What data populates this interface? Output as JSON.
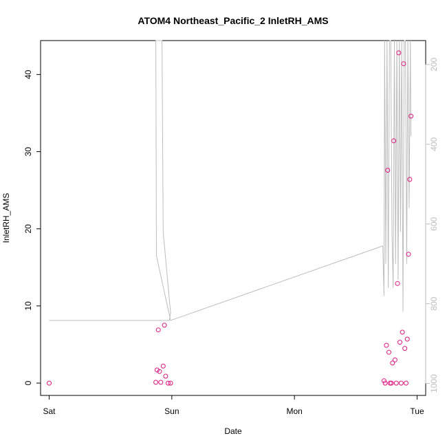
{
  "chart_data": {
    "type": "scatter",
    "title": "ATOM4 Northeast_Pacific_2 InletRH_AMS",
    "xlabel": "Date",
    "ylabel": "InletRH_AMS",
    "x_ticks": [
      "Sat",
      "Sun",
      "Mon",
      "Tue"
    ],
    "y_ticks": [
      0,
      10,
      20,
      30,
      40
    ],
    "ylim": [
      -1.6,
      44.4
    ],
    "xlim_days": [
      -0.07,
      3.07
    ],
    "right_axis": {
      "ticks": [
        200,
        400,
        600,
        800,
        1000
      ],
      "range_top_to_bottom": [
        140,
        1030
      ],
      "color": "#bdbdbd"
    },
    "series": [
      {
        "style": "points",
        "color": "#e0157f",
        "x_days": [
          0.0,
          0.87,
          0.88,
          0.9,
          0.91,
          0.93,
          0.94,
          0.95,
          0.97,
          0.99,
          0.89,
          2.73,
          2.74,
          2.75,
          2.76,
          2.77,
          2.78,
          2.79,
          2.8,
          2.81,
          2.82,
          2.83,
          2.84,
          2.85,
          2.86,
          2.87,
          2.88,
          2.89,
          2.9,
          2.91,
          2.92,
          2.93,
          2.94,
          2.95
        ],
        "values": [
          0.0,
          0.1,
          1.7,
          1.5,
          0.1,
          2.2,
          7.5,
          0.9,
          0.0,
          0.0,
          6.9,
          0.3,
          0.0,
          4.9,
          27.6,
          4.0,
          0.0,
          0.0,
          2.6,
          31.4,
          3.0,
          0.0,
          12.9,
          42.8,
          5.3,
          0.0,
          6.6,
          41.4,
          4.5,
          0.0,
          5.7,
          16.7,
          26.4,
          34.6
        ]
      },
      {
        "style": "line",
        "color": "#bdbdbd",
        "axis": "right",
        "x_days": [
          0.0,
          0.98,
          0.99,
          0.93,
          0.92,
          0.905,
          0.89,
          0.88,
          0.87,
          0.875,
          0.99,
          2.72,
          2.73,
          2.735,
          2.745,
          2.755,
          2.765,
          2.775,
          2.785,
          2.795,
          2.805,
          2.815,
          2.825,
          2.835,
          2.845,
          2.855,
          2.865,
          2.875,
          2.885,
          2.895,
          2.905,
          2.915,
          2.925,
          2.935,
          2.945,
          2.95
        ],
        "values": [
          842,
          842,
          822,
          620,
          140,
          140,
          140,
          140,
          140,
          680,
          842,
          655,
          780,
          140,
          700,
          140,
          760,
          140,
          140,
          620,
          760,
          140,
          700,
          140,
          740,
          140,
          620,
          140,
          820,
          140,
          140,
          700,
          140,
          560,
          140,
          380
        ]
      }
    ]
  }
}
